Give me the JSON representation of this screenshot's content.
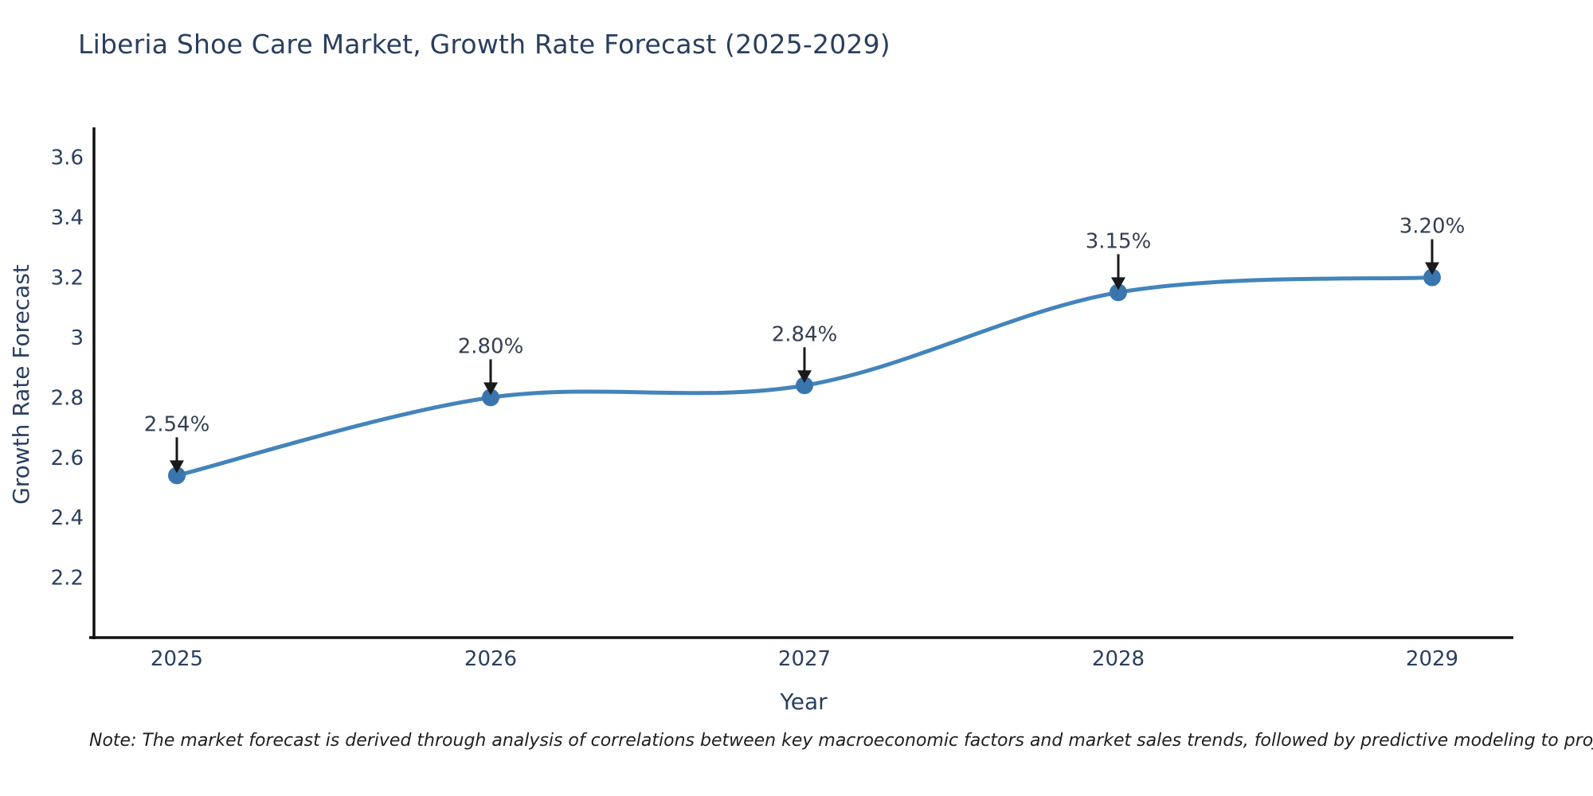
{
  "chart_data": {
    "type": "line",
    "title": "Liberia Shoe Care Market, Growth Rate Forecast (2025-2029)",
    "xlabel": "Year",
    "ylabel": "Growth Rate Forecast",
    "categories": [
      "2025",
      "2026",
      "2027",
      "2028",
      "2029"
    ],
    "series": [
      {
        "name": "Growth Rate Forecast",
        "values": [
          2.54,
          2.8,
          2.84,
          3.15,
          3.2
        ],
        "point_labels": [
          "2.54%",
          "2.80%",
          "2.84%",
          "3.15%",
          "3.20%"
        ]
      }
    ],
    "ylim": [
      2.0,
      3.7
    ],
    "yticks": [
      2.2,
      2.4,
      2.6,
      2.8,
      3.0,
      3.2,
      3.4,
      3.6
    ],
    "ytick_labels": [
      "2.2",
      "2.4",
      "2.6",
      "2.8",
      "3",
      "3.2",
      "3.4",
      "3.6"
    ],
    "grid": false,
    "legend_position": "none",
    "line_shape": "spline",
    "annotations": "value labels with down arrows above each point",
    "colors": {
      "line": "#4384bb",
      "marker": "#3a76ad",
      "axis": "#101010",
      "arrow": "#1a1a1a",
      "title_text": "#2a3f5f",
      "tick_text": "#2a3f5f",
      "background": "#ffffff"
    }
  },
  "note": {
    "text": "Note: The market forecast is derived through analysis of correlations between key macroeconomic factors and market sales trends, followed by predictive modeling to project future sales"
  }
}
